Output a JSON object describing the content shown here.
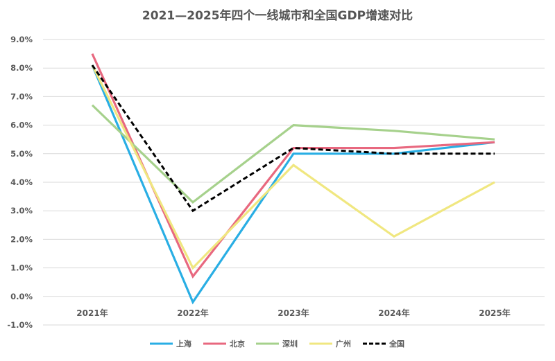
{
  "chart_data": {
    "type": "line",
    "title": "2021—2025年四个一线城市和全国GDP增速对比",
    "categories": [
      "2021年",
      "2022年",
      "2023年",
      "2024年",
      "2025年"
    ],
    "ylim": [
      -1.0,
      9.0
    ],
    "yticks": [
      9.0,
      8.0,
      7.0,
      6.0,
      5.0,
      4.0,
      3.0,
      2.0,
      1.0,
      0.0,
      -1.0
    ],
    "ytick_labels": [
      "9.0%",
      "8.0%",
      "7.0%",
      "6.0%",
      "5.0%",
      "4.0%",
      "3.0%",
      "2.0%",
      "1.0%",
      "0.0%",
      "-1.0%"
    ],
    "grid": true,
    "legend_position": "bottom",
    "series": [
      {
        "name": "上海",
        "color": "#29aee4",
        "dashed": false,
        "values": [
          8.1,
          -0.2,
          5.0,
          5.0,
          5.4
        ]
      },
      {
        "name": "北京",
        "color": "#e8687f",
        "dashed": false,
        "values": [
          8.5,
          0.7,
          5.2,
          5.2,
          5.4
        ]
      },
      {
        "name": "深圳",
        "color": "#a6d18c",
        "dashed": false,
        "values": [
          6.7,
          3.3,
          6.0,
          5.8,
          5.5
        ]
      },
      {
        "name": "广州",
        "color": "#f0e780",
        "dashed": false,
        "values": [
          8.1,
          1.0,
          4.6,
          2.1,
          4.0
        ]
      },
      {
        "name": "全国",
        "color": "#000000",
        "dashed": true,
        "values": [
          8.1,
          3.0,
          5.2,
          5.0,
          5.0
        ]
      }
    ]
  }
}
